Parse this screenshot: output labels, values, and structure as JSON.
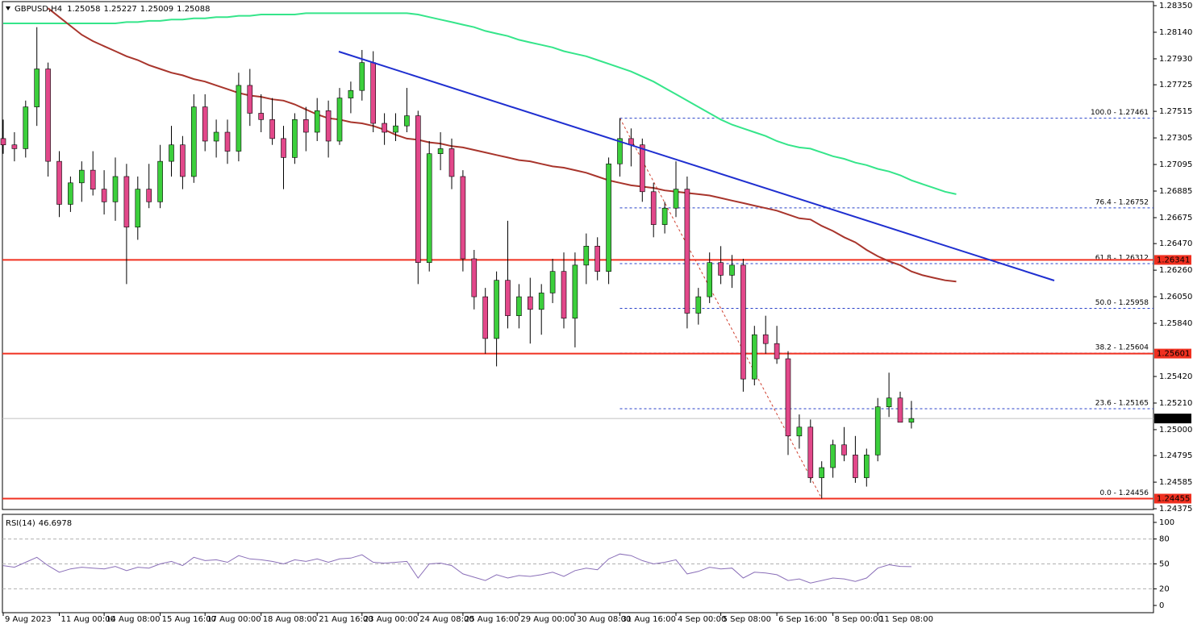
{
  "chart_data": [
    {
      "type": "candlestick",
      "symbol": "GBPUSD,H4",
      "categories": [
        "9 Aug 2023",
        null,
        null,
        null,
        null,
        "11 Aug 00:00",
        null,
        null,
        null,
        "14 Aug 08:00",
        null,
        null,
        null,
        null,
        "15 Aug 16:00",
        null,
        null,
        null,
        "17 Aug 00:00",
        null,
        null,
        null,
        null,
        "18 Aug 08:00",
        null,
        null,
        null,
        null,
        "21 Aug 16:00",
        null,
        null,
        null,
        "23 Aug 00:00",
        null,
        null,
        null,
        null,
        "24 Aug 08:00",
        null,
        null,
        null,
        "25 Aug 16:00",
        null,
        null,
        null,
        null,
        "29 Aug 00:00",
        null,
        null,
        null,
        null,
        "30 Aug 08:00",
        null,
        null,
        null,
        "31 Aug 16:00",
        null,
        null,
        null,
        null,
        "4 Sep 00:00",
        null,
        null,
        null,
        "5 Sep 08:00",
        null,
        null,
        null,
        null,
        "6 Sep 16:00",
        null,
        null,
        null,
        null,
        "8 Sep 00:00",
        null,
        null,
        null,
        "11 Sep 08:00",
        null,
        null,
        null,
        null,
        null,
        null,
        null
      ],
      "open": [
        1.273,
        1.2725,
        1.2722,
        1.2755,
        1.2785,
        1.2712,
        1.2678,
        1.2695,
        1.2705,
        1.269,
        1.268,
        1.27,
        1.266,
        1.269,
        1.268,
        1.2712,
        1.2725,
        1.27,
        1.2755,
        1.2728,
        1.2735,
        1.272,
        1.2772,
        1.275,
        1.2745,
        1.273,
        1.2715,
        1.2745,
        1.2735,
        1.2752,
        1.2728,
        1.2762,
        1.2768,
        1.279,
        1.2742,
        1.2735,
        1.274,
        1.2748,
        1.2632,
        1.2718,
        1.2722,
        1.27,
        1.2635,
        1.2605,
        1.2572,
        1.2618,
        1.259,
        1.2605,
        1.2595,
        1.2608,
        1.2625,
        1.2588,
        1.263,
        1.2645,
        1.2625,
        1.271,
        1.273,
        1.2725,
        1.2688,
        1.2662,
        1.2675,
        1.269,
        1.2592,
        1.2605,
        1.2632,
        1.2622,
        1.263,
        1.254,
        1.2575,
        1.2568,
        1.2556,
        1.2495,
        1.2502,
        1.2462,
        1.247,
        1.2488,
        1.248,
        1.2462,
        1.248,
        1.2518,
        1.2525,
        1.25058,
        null,
        null,
        null,
        null
      ],
      "high": [
        1.2745,
        1.2735,
        1.276,
        1.2818,
        1.279,
        1.272,
        1.27,
        1.2712,
        1.272,
        1.2705,
        1.2715,
        1.271,
        1.27,
        1.271,
        1.2725,
        1.274,
        1.2732,
        1.2765,
        1.2765,
        1.2745,
        1.2745,
        1.2782,
        1.2785,
        1.2765,
        1.2762,
        1.274,
        1.275,
        1.2755,
        1.2762,
        1.276,
        1.277,
        1.2775,
        1.28,
        1.2799,
        1.275,
        1.275,
        1.277,
        1.2752,
        1.2728,
        1.2735,
        1.273,
        1.2705,
        1.2642,
        1.2612,
        1.2625,
        1.2665,
        1.2615,
        1.262,
        1.2615,
        1.2635,
        1.264,
        1.264,
        1.2655,
        1.2652,
        1.2715,
        1.27461,
        1.2738,
        1.273,
        1.2695,
        1.268,
        1.2712,
        1.27,
        1.2612,
        1.264,
        1.2645,
        1.2638,
        1.2635,
        1.2582,
        1.259,
        1.2582,
        1.2562,
        1.2512,
        1.2508,
        1.2475,
        1.2492,
        1.2502,
        1.2495,
        1.2485,
        1.2525,
        1.2545,
        1.253,
        1.25227,
        null,
        null,
        null,
        null
      ],
      "low": [
        1.2718,
        1.2712,
        1.2715,
        1.274,
        1.27,
        1.2668,
        1.2672,
        1.268,
        1.2685,
        1.267,
        1.2665,
        1.2615,
        1.265,
        1.2675,
        1.2675,
        1.27,
        1.269,
        1.2695,
        1.272,
        1.2715,
        1.271,
        1.2712,
        1.274,
        1.2735,
        1.2725,
        1.269,
        1.271,
        1.272,
        1.2728,
        1.2715,
        1.2725,
        1.275,
        1.276,
        1.2735,
        1.2725,
        1.2728,
        1.2735,
        1.2615,
        1.2625,
        1.2705,
        1.269,
        1.2625,
        1.2595,
        1.256,
        1.255,
        1.258,
        1.258,
        1.2568,
        1.2575,
        1.26,
        1.258,
        1.2565,
        1.2615,
        1.2618,
        1.2615,
        1.27,
        1.2708,
        1.268,
        1.2652,
        1.2655,
        1.2668,
        1.258,
        1.2583,
        1.26,
        1.2615,
        1.2612,
        1.253,
        1.2535,
        1.256,
        1.2552,
        1.248,
        1.2485,
        1.2458,
        1.24456,
        1.2462,
        1.2475,
        1.2458,
        1.2455,
        1.2475,
        1.251,
        1.2508,
        1.25009,
        null,
        null,
        null,
        null
      ],
      "close": [
        1.2725,
        1.2722,
        1.2755,
        1.2785,
        1.2712,
        1.2678,
        1.2695,
        1.2705,
        1.269,
        1.268,
        1.27,
        1.266,
        1.269,
        1.268,
        1.2712,
        1.2725,
        1.27,
        1.2755,
        1.2728,
        1.2735,
        1.272,
        1.2772,
        1.275,
        1.2745,
        1.273,
        1.2715,
        1.2745,
        1.2735,
        1.2752,
        1.2728,
        1.2762,
        1.2768,
        1.279,
        1.2742,
        1.2735,
        1.274,
        1.2748,
        1.2632,
        1.2718,
        1.2722,
        1.27,
        1.2635,
        1.2605,
        1.2572,
        1.2618,
        1.259,
        1.2605,
        1.2595,
        1.2608,
        1.2625,
        1.2588,
        1.263,
        1.2645,
        1.2625,
        1.271,
        1.273,
        1.2725,
        1.2688,
        1.2662,
        1.2675,
        1.269,
        1.2592,
        1.2605,
        1.2632,
        1.2622,
        1.263,
        1.254,
        1.2575,
        1.2568,
        1.2556,
        1.2495,
        1.2502,
        1.2462,
        1.247,
        1.2488,
        1.248,
        1.2462,
        1.248,
        1.2518,
        1.2525,
        1.25058,
        1.25088,
        null,
        null,
        null,
        null
      ],
      "up_color": "#3ccf3c",
      "down_color": "#e2488a",
      "series": [
        {
          "color": "#35e58a",
          "values": [
            1.2821,
            1.2821,
            1.2821,
            1.2821,
            1.2821,
            1.2821,
            1.2821,
            1.2821,
            1.2821,
            1.2821,
            1.2821,
            1.2822,
            1.2822,
            1.2823,
            1.2823,
            1.2824,
            1.2824,
            1.2825,
            1.2825,
            1.2826,
            1.2826,
            1.2827,
            1.2827,
            1.2828,
            1.2828,
            1.2828,
            1.2828,
            1.2829,
            1.2829,
            1.2829,
            1.2829,
            1.2829,
            1.2829,
            1.2829,
            1.2829,
            1.2829,
            1.2829,
            1.2828,
            1.2826,
            1.2824,
            1.2822,
            1.282,
            1.2818,
            1.2815,
            1.2813,
            1.2811,
            1.2808,
            1.2806,
            1.2804,
            1.2802,
            1.2799,
            1.2797,
            1.2795,
            1.2792,
            1.2789,
            1.2786,
            1.2783,
            1.2779,
            1.2775,
            1.277,
            1.2765,
            1.276,
            1.2755,
            1.275,
            1.2745,
            1.2741,
            1.2738,
            1.2735,
            1.2732,
            1.2728,
            1.2725,
            1.2723,
            1.2722,
            1.2719,
            1.2716,
            1.2714,
            1.2711,
            1.2709,
            1.2706,
            1.2704,
            1.2701,
            1.2697,
            1.2694,
            1.2691,
            1.2688,
            1.2686
          ]
        },
        {
          "color": "#a8352c",
          "values": [
            null,
            null,
            null,
            null,
            1.2833,
            1.2826,
            1.2819,
            1.2812,
            1.2807,
            1.2803,
            1.2799,
            1.2795,
            1.2792,
            1.2788,
            1.2785,
            1.2782,
            1.278,
            1.2777,
            1.2775,
            1.2772,
            1.2769,
            1.2766,
            1.2764,
            1.2763,
            1.2761,
            1.276,
            1.2757,
            1.2753,
            1.2749,
            1.2746,
            1.2745,
            1.2743,
            1.2742,
            1.274,
            1.2737,
            1.2733,
            1.273,
            1.2729,
            1.2727,
            1.2726,
            1.2724,
            1.2723,
            1.2721,
            1.2719,
            1.2717,
            1.2715,
            1.2713,
            1.2712,
            1.271,
            1.2708,
            1.2707,
            1.2705,
            1.2703,
            1.27,
            1.2697,
            1.2695,
            1.2693,
            1.2692,
            1.2691,
            1.2689,
            1.2688,
            1.2687,
            1.2686,
            1.2685,
            1.2683,
            1.2681,
            1.2679,
            1.2677,
            1.2675,
            1.2673,
            1.267,
            1.2667,
            1.2666,
            1.2661,
            1.2657,
            1.2652,
            1.2648,
            1.2642,
            1.2637,
            1.2633,
            1.263,
            1.2625,
            1.2622,
            1.262,
            1.2618,
            1.2617
          ]
        }
      ],
      "ylim": [
        1.24369,
        1.28382
      ],
      "yticks": [
        {
          "value": 1.2835,
          "label": "1.28350"
        },
        {
          "value": 1.2814,
          "label": "1.28140"
        },
        {
          "value": 1.2793,
          "label": "1.27930"
        },
        1.27725,
        1.27515,
        1.27305,
        1.27095,
        1.26885,
        1.26675,
        {
          "value": 1.2647,
          "label": "1.26470"
        },
        {
          "value": 1.2626,
          "label": "1.26260"
        },
        {
          "value": 1.2605,
          "label": "1.26050"
        },
        {
          "value": 1.2584,
          "label": "1.25840"
        },
        {
          "value": 1.2542,
          "label": "1.25420"
        },
        {
          "value": 1.2521,
          "label": "1.25210"
        },
        {
          "value": 1.25,
          "label": "1.25000"
        },
        1.24795,
        1.24585,
        1.24375
      ],
      "grid": false,
      "hlines": [
        1.26341,
        1.25601,
        1.24455
      ],
      "hline_color": "#f03020",
      "last_price": 1.25088,
      "fib_color": "#2840c8",
      "fib_levels": [
        {
          "value": 1.27461,
          "label": "100.0 - 1.27461"
        },
        {
          "value": 1.26752,
          "label": "76.4 - 1.26752"
        },
        {
          "value": 1.26312,
          "label": "61.8 - 1.26312"
        },
        {
          "value": 1.25958,
          "label": "50.0 - 1.25958"
        },
        {
          "value": 1.25604,
          "label": "38.2 - 1.25604"
        },
        {
          "value": 1.25165,
          "label": "23.6 - 1.25165"
        },
        {
          "value": 1.24456,
          "label": "0.0 - 1.24456"
        }
      ]
    },
    {
      "type": "line",
      "title": "RSI(14)",
      "series": [
        {
          "color": "#8a6fb8",
          "values": [
            48,
            46,
            52,
            58,
            48,
            40,
            44,
            46,
            45,
            44,
            47,
            42,
            46,
            45,
            50,
            53,
            48,
            58,
            54,
            55,
            52,
            60,
            56,
            55,
            53,
            50,
            55,
            53,
            56,
            52,
            56,
            57,
            61,
            52,
            51,
            52,
            53,
            33,
            50,
            51,
            48,
            38,
            34,
            30,
            37,
            33,
            36,
            35,
            37,
            40,
            35,
            42,
            45,
            43,
            56,
            62,
            60,
            54,
            50,
            52,
            55,
            38,
            41,
            46,
            44,
            45,
            33,
            40,
            39,
            37,
            30,
            32,
            27,
            30,
            33,
            32,
            29,
            33,
            45,
            49,
            47,
            46.6978
          ]
        }
      ],
      "ylim": [
        -8.7,
        109.7
      ],
      "yticks": [
        0,
        20,
        50,
        80,
        100
      ],
      "levels": [
        80,
        50,
        20
      ]
    }
  ]
}
